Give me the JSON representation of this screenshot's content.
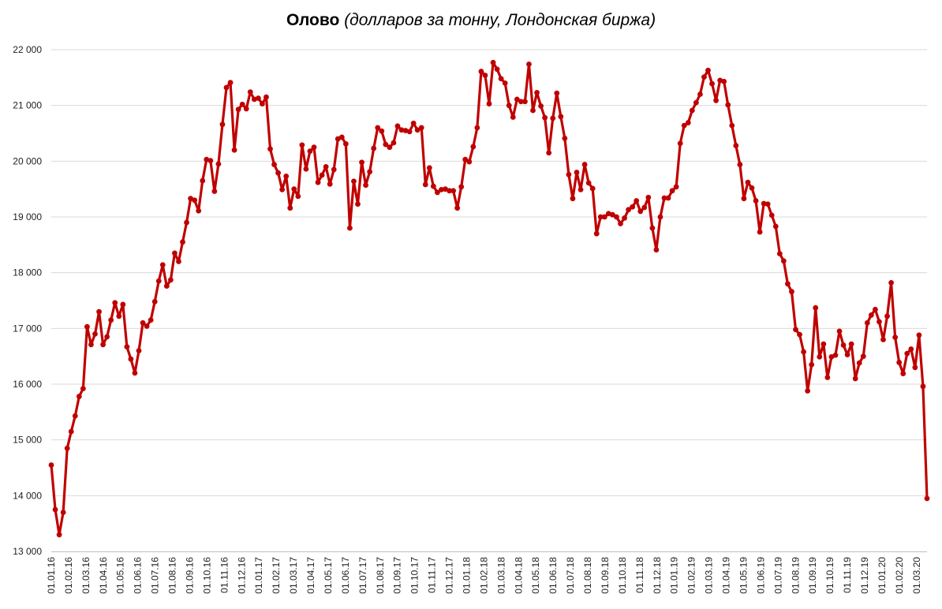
{
  "chart_data": {
    "type": "line",
    "title_bold": "Олово",
    "title_rest": " (долларов за тонну, Лондонская биржа)",
    "xlabel": "",
    "ylabel": "",
    "ylim": [
      13000,
      22000
    ],
    "yticks": [
      13000,
      14000,
      15000,
      16000,
      17000,
      18000,
      19000,
      20000,
      21000,
      22000
    ],
    "ytick_labels": [
      "13 000",
      "14 000",
      "15 000",
      "16 000",
      "17 000",
      "18 000",
      "19 000",
      "20 000",
      "21 000",
      "22 000"
    ],
    "xtick_labels": [
      "01.01.16",
      "01.02.16",
      "01.03.16",
      "01.04.16",
      "01.05.16",
      "01.06.16",
      "01.07.16",
      "01.08.16",
      "01.09.16",
      "01.10.16",
      "01.11.16",
      "01.12.16",
      "01.01.17",
      "01.02.17",
      "01.03.17",
      "01.04.17",
      "01.05.17",
      "01.06.17",
      "01.07.17",
      "01.08.17",
      "01.09.17",
      "01.10.17",
      "01.11.17",
      "01.12.17",
      "01.01.18",
      "01.02.18",
      "01.03.18",
      "01.04.18",
      "01.05.18",
      "01.06.18",
      "01.07.18",
      "01.08.18",
      "01.09.18",
      "01.10.18",
      "01.11.18",
      "01.12.18",
      "01.01.19",
      "01.02.19",
      "01.03.19",
      "01.04.19",
      "01.05.19",
      "01.06.19",
      "01.07.19",
      "01.08.19",
      "01.09.19",
      "01.10.19",
      "01.11.19",
      "01.12.19",
      "01.01.20",
      "01.02.20",
      "01.03.20"
    ],
    "grid": true,
    "legend": "none",
    "line_color": "#C00000",
    "grid_color": "#D9D9D9",
    "series": [
      {
        "values": [
          14550,
          13750,
          13300,
          13700,
          14850,
          15150,
          15430,
          15780,
          15920,
          17030,
          16710,
          16900,
          17300,
          16710,
          16850,
          17150,
          17460,
          17220,
          17430,
          16670,
          16450,
          16200,
          16600,
          17100,
          17040,
          17150,
          17480,
          17850,
          18140,
          17760,
          17870,
          18350,
          18200,
          18550,
          18900,
          19330,
          19300,
          19110,
          19650,
          20030,
          20010,
          19460,
          19950,
          20660,
          21320,
          21410,
          20200,
          20930,
          21020,
          20940,
          21240,
          21110,
          21130,
          21030,
          21150,
          20220,
          19940,
          19790,
          19490,
          19730,
          19160,
          19500,
          19370,
          20290,
          19860,
          20180,
          20250,
          19620,
          19750,
          19900,
          19590,
          19850,
          20400,
          20430,
          20310,
          18800,
          19640,
          19230,
          19980,
          19570,
          19810,
          20230,
          20600,
          20540,
          20300,
          20250,
          20330,
          20630,
          20560,
          20550,
          20530,
          20680,
          20560,
          20600,
          19580,
          19880,
          19550,
          19440,
          19490,
          19500,
          19470,
          19470,
          19160,
          19540,
          20030,
          19990,
          20260,
          20600,
          21610,
          21540,
          21030,
          21770,
          21650,
          21480,
          21400,
          21000,
          20790,
          21110,
          21070,
          21070,
          21740,
          20910,
          21230,
          20990,
          20780,
          20150,
          20770,
          21220,
          20800,
          20410,
          19760,
          19330,
          19800,
          19490,
          19940,
          19610,
          19510,
          18700,
          19000,
          19000,
          19060,
          19040,
          19000,
          18880,
          18980,
          19130,
          19180,
          19290,
          19100,
          19170,
          19350,
          18800,
          18410,
          19000,
          19340,
          19340,
          19470,
          19540,
          20320,
          20640,
          20690,
          20910,
          21050,
          21200,
          21510,
          21630,
          21390,
          21090,
          21450,
          21430,
          21010,
          20640,
          20280,
          19940,
          19330,
          19620,
          19520,
          19290,
          18730,
          19240,
          19230,
          19030,
          18830,
          18340,
          18210,
          17800,
          17660,
          16980,
          16890,
          16580,
          15880,
          16350,
          17370,
          16490,
          16720,
          16120,
          16490,
          16520,
          16950,
          16700,
          16530,
          16720,
          16100,
          16380,
          16500,
          17100,
          17240,
          17340,
          17120,
          16800,
          17220,
          17820,
          16840,
          16390,
          16190,
          16550,
          16630,
          16300,
          16880,
          15960,
          13950
        ]
      }
    ]
  }
}
